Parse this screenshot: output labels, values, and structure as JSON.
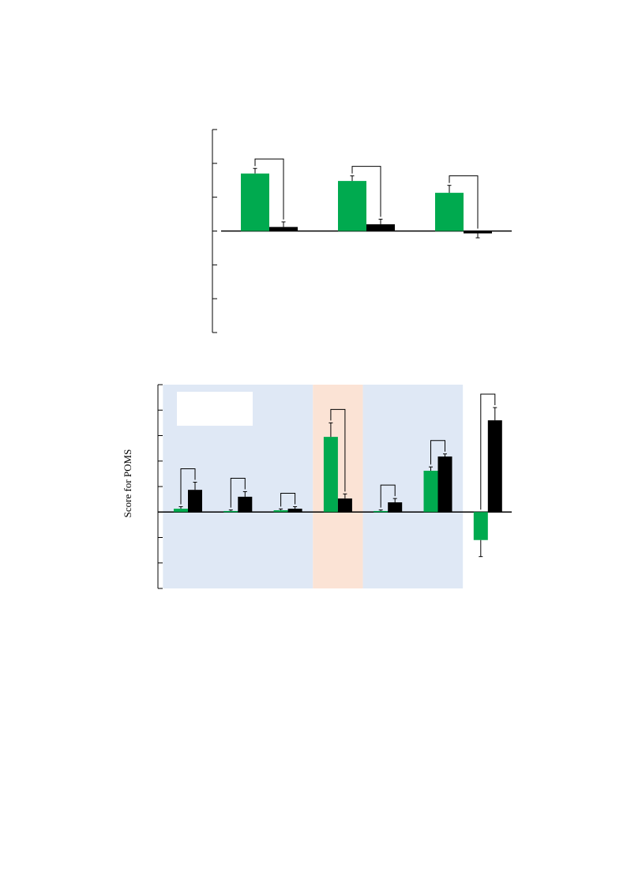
{
  "colors": {
    "green": "#00aa4f",
    "black": "#000000",
    "blue_band": "#dfe8f5",
    "orange_band": "#fbe3d5",
    "legend_box": "#ffffff"
  },
  "chart_data": [
    {
      "type": "bar",
      "title": "",
      "xlabel": "",
      "ylabel": "",
      "ylim": [
        -3,
        3
      ],
      "grid": false,
      "categories": [
        "",
        "",
        ""
      ],
      "series": [
        {
          "color": "#00aa4f",
          "values": [
            1.7,
            1.48,
            1.13
          ],
          "errors": [
            0.15,
            0.15,
            0.22
          ]
        },
        {
          "color": "#000000",
          "values": [
            0.12,
            0.2,
            -0.07
          ],
          "errors": [
            0.15,
            0.15,
            0.13
          ]
        }
      ],
      "comparisons": [
        0,
        1,
        2
      ]
    },
    {
      "type": "bar",
      "title": "",
      "xlabel": "",
      "ylabel": "Score for POMS",
      "ylim": [
        -3,
        5
      ],
      "grid": false,
      "categories": [
        "",
        "",
        "",
        "",
        "",
        "",
        ""
      ],
      "series": [
        {
          "color": "#00aa4f",
          "values": [
            0.13,
            0.04,
            0.07,
            2.95,
            0.04,
            1.62,
            -1.1
          ],
          "errors": [
            0.08,
            0.04,
            0.05,
            0.55,
            0.04,
            0.15,
            0.65
          ]
        },
        {
          "color": "#000000",
          "values": [
            0.87,
            0.6,
            0.13,
            0.53,
            0.38,
            2.18,
            3.6
          ],
          "errors": [
            0.3,
            0.2,
            0.08,
            0.18,
            0.15,
            0.1,
            0.5
          ]
        }
      ],
      "comparisons": [
        0,
        1,
        2,
        3,
        4,
        5,
        6
      ],
      "bands": [
        {
          "color": "blue",
          "from_category": 0,
          "to_category": 2
        },
        {
          "color": "orange",
          "from_category": 3,
          "to_category": 3
        },
        {
          "color": "blue",
          "from_category": 4,
          "to_category": 5
        }
      ]
    }
  ]
}
